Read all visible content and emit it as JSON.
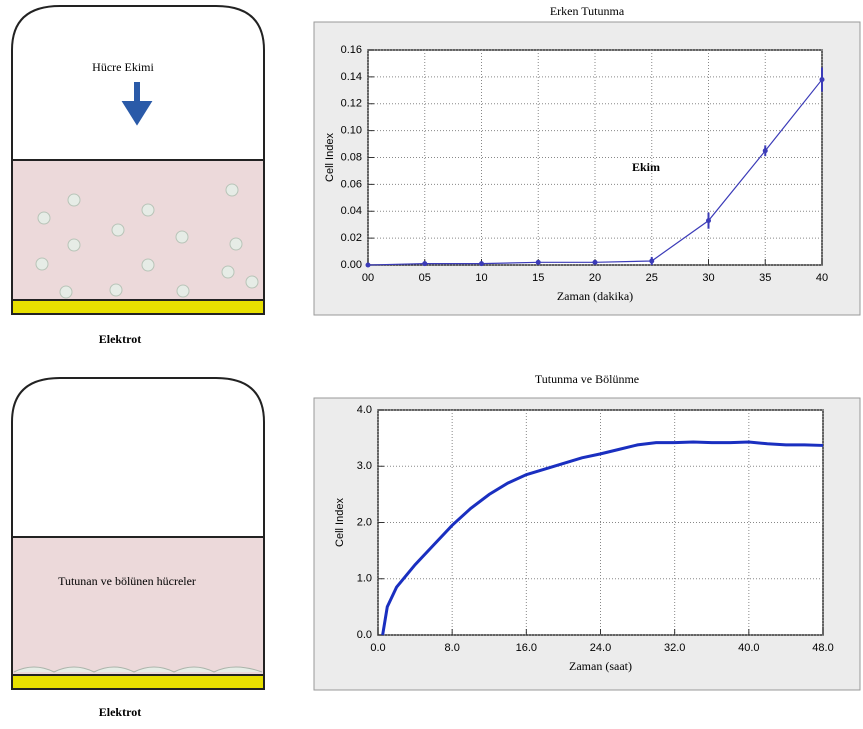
{
  "diagrams": {
    "top": {
      "label": "Hücre Ekimi",
      "base": "Elektrot"
    },
    "bottom": {
      "label": "Tutunan ve bölünen hücreler",
      "base": "Elektrot"
    }
  },
  "chart_data": [
    {
      "type": "line",
      "title": "Erken Tutunma",
      "x_label": "Zaman (dakika)",
      "y_label": "Cell Index",
      "annotation": "Ekim",
      "x": [
        0,
        5,
        10,
        15,
        20,
        25,
        30,
        35,
        40
      ],
      "series": [
        {
          "color": "#3b3bb8",
          "values": [
            0,
            0.001,
            0.001,
            0.002,
            0.002,
            0.003,
            0.033,
            0.085,
            0.138
          ],
          "errors": [
            0,
            0,
            0,
            0,
            0,
            0.003,
            0.006,
            0.004,
            0.009
          ]
        }
      ],
      "xlim": [
        0,
        40
      ],
      "ylim": [
        0,
        0.16
      ],
      "xticks": [
        {
          "value": 0,
          "label": "00"
        },
        {
          "value": 5,
          "label": "05"
        },
        10,
        15,
        20,
        25,
        30,
        35,
        40
      ],
      "yticks": [
        {
          "value": 0,
          "label": "0.00"
        },
        0.02,
        0.04,
        0.06,
        0.08,
        {
          "value": 0.1,
          "label": "0.10"
        },
        0.12,
        0.14,
        0.16
      ],
      "grid": true
    },
    {
      "type": "line",
      "title": "Tutunma ve Bölünme",
      "x_label": "Zaman (saat)",
      "y_label": "Cell Index",
      "x": [
        0.5,
        1,
        2,
        3,
        4,
        6,
        8,
        10,
        12,
        14,
        16,
        18,
        20,
        22,
        24,
        26,
        28,
        30,
        32,
        34,
        36,
        38,
        40,
        42,
        44,
        46,
        48
      ],
      "series": [
        {
          "color": "#1a2fc0",
          "values": [
            0,
            0.5,
            0.85,
            1.05,
            1.25,
            1.6,
            1.95,
            2.25,
            2.5,
            2.7,
            2.85,
            2.95,
            3.05,
            3.15,
            3.22,
            3.3,
            3.38,
            3.42,
            3.42,
            3.43,
            3.42,
            3.42,
            3.43,
            3.4,
            3.38,
            3.38,
            3.37
          ]
        }
      ],
      "xlim": [
        0,
        48
      ],
      "ylim": [
        0,
        4
      ],
      "xticks": [
        {
          "value": 0,
          "label": "0.0"
        },
        {
          "value": 8,
          "label": "8.0"
        },
        {
          "value": 16,
          "label": "16.0"
        },
        {
          "value": 24,
          "label": "24.0"
        },
        {
          "value": 32,
          "label": "32.0"
        },
        {
          "value": 40,
          "label": "40.0"
        },
        {
          "value": 48,
          "label": "48.0"
        }
      ],
      "yticks": [
        {
          "value": 0,
          "label": "0.0"
        },
        {
          "value": 1,
          "label": "1.0"
        },
        {
          "value": 2,
          "label": "2.0"
        },
        {
          "value": 3,
          "label": "3.0"
        },
        {
          "value": 4,
          "label": "4.0"
        }
      ],
      "grid": true
    }
  ]
}
